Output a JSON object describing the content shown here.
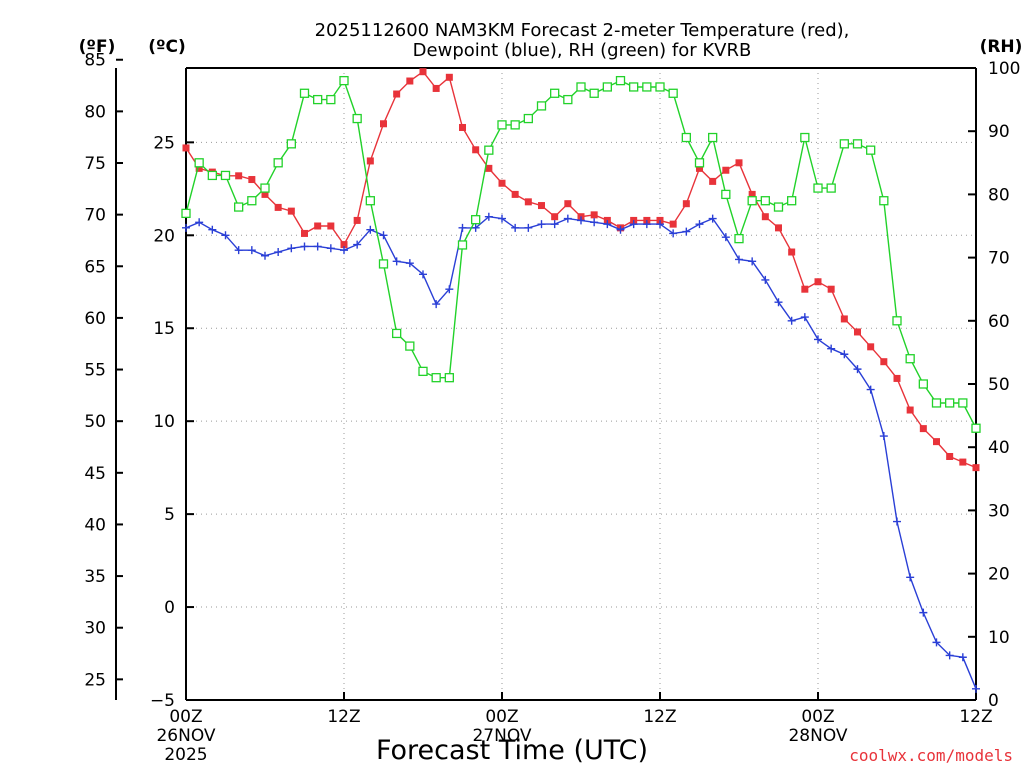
{
  "chart_data": {
    "type": "line",
    "title_line1": "2025112600 NAM3KM Forecast 2-meter Temperature (red),",
    "title_line2": "Dewpoint (blue), RH (green) for KVRB",
    "xlabel": "Forecast Time (UTC)",
    "credit": "coolwx.com/models",
    "axis_unit_f": "(ºF)",
    "axis_unit_c": "(ºC)",
    "axis_unit_rh": "(RH)",
    "x_range_hours": [
      0,
      60
    ],
    "y_c_range": [
      -5,
      29
    ],
    "y_rh_range": [
      0,
      100
    ],
    "x_ticks": [
      {
        "hour": 0,
        "time": "00Z",
        "date": "26NOV",
        "year": "2025"
      },
      {
        "hour": 12,
        "time": "12Z",
        "date": "",
        "year": ""
      },
      {
        "hour": 24,
        "time": "00Z",
        "date": "27NOV",
        "year": ""
      },
      {
        "hour": 36,
        "time": "12Z",
        "date": "",
        "year": ""
      },
      {
        "hour": 48,
        "time": "00Z",
        "date": "28NOV",
        "year": ""
      },
      {
        "hour": 60,
        "time": "12Z",
        "date": "",
        "year": ""
      }
    ],
    "y_c_ticks": [
      "25",
      "20",
      "15",
      "10",
      "5",
      "0",
      "−5"
    ],
    "y_f_ticks": [
      "85",
      "80",
      "75",
      "70",
      "65",
      "60",
      "55",
      "50",
      "45",
      "40",
      "35",
      "30",
      "25"
    ],
    "y_rh_ticks": [
      "100",
      "90",
      "80",
      "70",
      "60",
      "50",
      "40",
      "30",
      "20",
      "10",
      "0"
    ],
    "series": [
      {
        "name": "2-meter Temperature",
        "color": "#e8333a",
        "marker": "filled-square",
        "hours": [
          0,
          1,
          2,
          3,
          4,
          5,
          6,
          7,
          8,
          9,
          10,
          11,
          12,
          13,
          14,
          15,
          16,
          17,
          18,
          19,
          20,
          21,
          22,
          23,
          24,
          25,
          26,
          27,
          28,
          29,
          30,
          31,
          32,
          33,
          34,
          35,
          36,
          37,
          38,
          39,
          40,
          41,
          42,
          43,
          44,
          45,
          46,
          47,
          48,
          49,
          50,
          51,
          52,
          53,
          54,
          55,
          56,
          57,
          58,
          59,
          60
        ],
        "values": [
          24.7,
          23.6,
          23.4,
          23.2,
          23.2,
          23.0,
          22.2,
          21.5,
          21.3,
          20.1,
          20.5,
          20.5,
          19.5,
          20.8,
          24.0,
          26.0,
          27.6,
          28.3,
          28.8,
          27.9,
          28.5,
          25.8,
          24.6,
          23.6,
          22.8,
          22.2,
          21.8,
          21.6,
          21.0,
          21.7,
          21.0,
          21.1,
          20.8,
          20.4,
          20.8,
          20.8,
          20.8,
          20.6,
          21.7,
          23.6,
          22.9,
          23.5,
          23.9,
          22.2,
          21.0,
          20.4,
          19.1,
          17.1,
          17.5,
          17.1,
          15.5,
          14.8,
          14.0,
          13.2,
          12.3,
          10.6,
          9.6,
          8.9,
          8.1,
          7.8,
          7.5
        ]
      },
      {
        "name": "Dewpoint",
        "color": "#2a3fd6",
        "marker": "plus",
        "hours": [
          0,
          1,
          2,
          3,
          4,
          5,
          6,
          7,
          8,
          9,
          10,
          11,
          12,
          13,
          14,
          15,
          16,
          17,
          18,
          19,
          20,
          21,
          22,
          23,
          24,
          25,
          26,
          27,
          28,
          29,
          30,
          31,
          32,
          33,
          34,
          35,
          36,
          37,
          38,
          39,
          40,
          41,
          42,
          43,
          44,
          45,
          46,
          47,
          48,
          49,
          50,
          51,
          52,
          53,
          54,
          55,
          56,
          57,
          58,
          59,
          60
        ],
        "values": [
          20.4,
          20.7,
          20.3,
          20.0,
          19.2,
          19.2,
          18.9,
          19.1,
          19.3,
          19.4,
          19.4,
          19.3,
          19.2,
          19.5,
          20.3,
          20.0,
          18.6,
          18.5,
          17.9,
          16.3,
          17.1,
          20.4,
          20.4,
          21.0,
          20.9,
          20.4,
          20.4,
          20.6,
          20.6,
          20.9,
          20.8,
          20.7,
          20.6,
          20.3,
          20.6,
          20.6,
          20.6,
          20.1,
          20.2,
          20.6,
          20.9,
          19.9,
          18.7,
          18.6,
          17.6,
          16.4,
          15.4,
          15.6,
          14.4,
          13.9,
          13.6,
          12.8,
          11.7,
          9.2,
          4.6,
          1.6,
          -0.3,
          -1.9,
          -2.6,
          -2.7,
          -4.4
        ]
      },
      {
        "name": "RH",
        "color": "#22d22a",
        "marker": "open-square",
        "hours": [
          0,
          1,
          2,
          3,
          4,
          5,
          6,
          7,
          8,
          9,
          10,
          11,
          12,
          13,
          14,
          15,
          16,
          17,
          18,
          19,
          20,
          21,
          22,
          23,
          24,
          25,
          26,
          27,
          28,
          29,
          30,
          31,
          32,
          33,
          34,
          35,
          36,
          37,
          38,
          39,
          40,
          41,
          42,
          43,
          44,
          45,
          46,
          47,
          48,
          49,
          50,
          51,
          52,
          53,
          54,
          55,
          56,
          57,
          58,
          59,
          60
        ],
        "values": [
          77,
          85,
          83,
          83,
          78,
          79,
          81,
          85,
          88,
          96,
          95,
          95,
          98,
          92,
          79,
          69,
          58,
          56,
          52,
          51,
          51,
          72,
          76,
          87,
          91,
          91,
          92,
          94,
          96,
          95,
          97,
          96,
          97,
          98,
          97,
          97,
          97,
          96,
          89,
          85,
          89,
          80,
          73,
          79,
          79,
          78,
          79,
          89,
          81,
          81,
          88,
          88,
          87,
          79,
          60,
          54,
          50,
          47,
          47,
          47,
          43
        ],
        "value_unit": "percent"
      }
    ]
  }
}
